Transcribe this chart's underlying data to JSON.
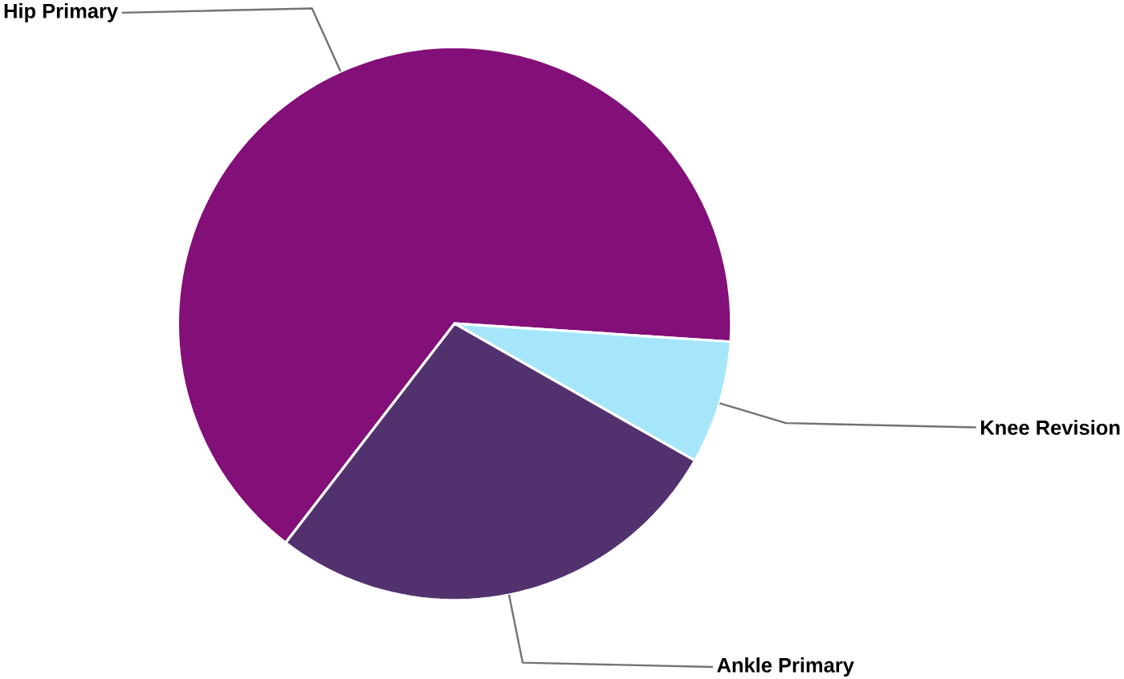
{
  "chart_data": {
    "type": "pie",
    "categories": [
      "Hip Primary",
      "Knee Revision",
      "Ankle Primary"
    ],
    "values": [
      65.6,
      7.2,
      27.2
    ],
    "colors": [
      "#830f78",
      "#a5e6fa",
      "#52326e"
    ]
  }
}
